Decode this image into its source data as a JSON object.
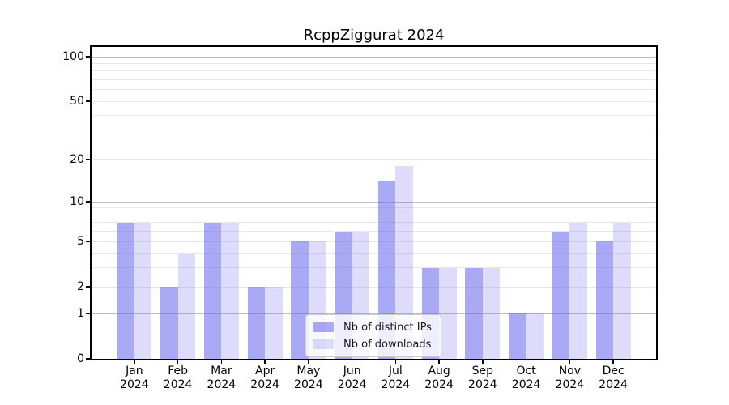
{
  "title": "RcppZiggurat 2024",
  "colors": {
    "bar_distinct_ips": "rgba(102,102,238,0.56)",
    "bar_downloads": "rgba(102,102,238,0.22)",
    "grid_major": "#bfbfbf",
    "grid_minor": "#e8e8e8",
    "axis": "#000000",
    "legend_border": "#cccccc",
    "legend_background": "rgba(255,255,255,0.8)"
  },
  "chart_data": {
    "type": "bar",
    "title": "RcppZiggurat 2024",
    "xlabel": "",
    "ylabel": "",
    "year_label": "2024",
    "categories": [
      "Jan",
      "Feb",
      "Mar",
      "Apr",
      "May",
      "Jun",
      "Jul",
      "Aug",
      "Sep",
      "Oct",
      "Nov",
      "Dec"
    ],
    "series": [
      {
        "name": "Nb of distinct IPs",
        "color": "rgba(102,102,238,0.56)",
        "values": [
          7,
          2,
          7,
          2,
          5,
          6,
          14,
          3,
          3,
          1,
          6,
          5
        ]
      },
      {
        "name": "Nb of downloads",
        "color": "rgba(102,102,238,0.22)",
        "values": [
          7,
          4,
          7,
          2,
          5,
          6,
          18,
          3,
          3,
          1,
          7,
          7
        ]
      }
    ],
    "yscale": "log1p",
    "ylim": [
      0,
      116
    ],
    "y_ticks": [
      0,
      1,
      2,
      5,
      10,
      20,
      50,
      100
    ],
    "grid": {
      "major": [
        1,
        10,
        100
      ],
      "minor": [
        2,
        3,
        4,
        5,
        6,
        7,
        8,
        9,
        20,
        30,
        40,
        50,
        60,
        70,
        80,
        90
      ]
    },
    "legend": {
      "position": "lower center",
      "entries": [
        "Nb of distinct IPs",
        "Nb of downloads"
      ]
    }
  }
}
